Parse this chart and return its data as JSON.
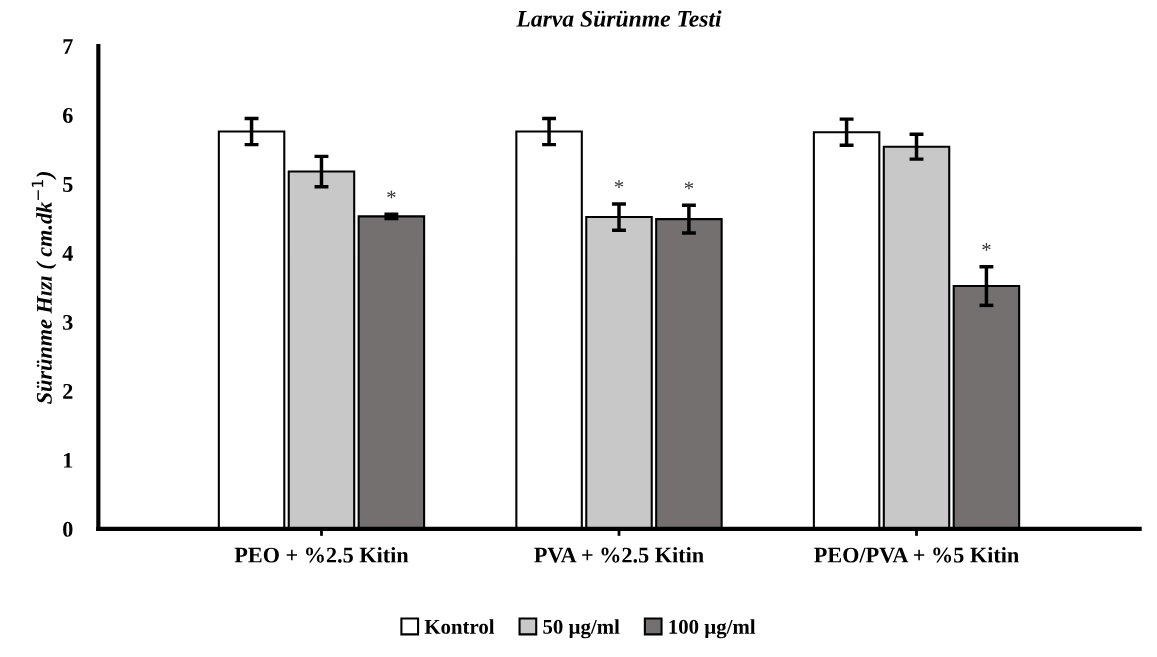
{
  "chart_data": {
    "type": "bar",
    "title": "Larva Sürünme Testi",
    "ylabel": "Sürünme Hızı ( cm.dk$^{−1}$)",
    "categories": [
      "PEO + %2.5 Kitin",
      "PVA + %2.5 Kitin",
      "PEO/PVA + %5 Kitin"
    ],
    "series": [
      {
        "name": "Kontrol",
        "color": "#ffffff",
        "values": [
          5.76,
          5.76,
          5.75
        ],
        "errors": [
          0.19,
          0.19,
          0.19
        ]
      },
      {
        "name": "50 µg/ml",
        "color": "#c8c8c8",
        "values": [
          5.18,
          4.52,
          5.54
        ],
        "errors": [
          0.22,
          0.19,
          0.18
        ],
        "value_labels": [
          null,
          "*",
          null
        ]
      },
      {
        "name": "100 µg/ml",
        "color": "#747070",
        "values": [
          4.53,
          4.49,
          3.52
        ],
        "errors": [
          0.03,
          0.2,
          0.28
        ],
        "value_labels": [
          "*",
          "*",
          "*"
        ]
      }
    ],
    "ylim": [
      0,
      7
    ],
    "yticks": [
      0,
      1,
      2,
      3,
      4,
      5,
      6,
      7
    ],
    "grid": false,
    "legend": "bottom"
  }
}
